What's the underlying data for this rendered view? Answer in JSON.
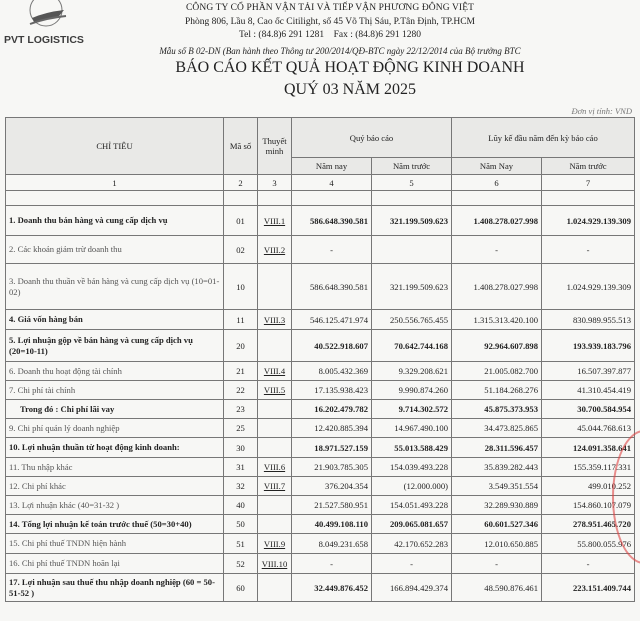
{
  "header": {
    "logo_text": "PVT LOGISTICS",
    "logo_badge": "PDV",
    "company": "CÔNG TY CỔ PHẦN VẬN TẢI VÀ TIẾP VẬN PHƯƠNG ĐÔNG VIỆT",
    "address": "Phòng 806, Lầu 8, Cao ốc Citilight, số 45 Võ Thị Sáu, P.Tân Định, TP.HCM",
    "tel": "Tel : (84.8)6 291 1281    Fax : (84.8)6 291 1280",
    "form": "Mẫu số B 02-DN (Ban hành theo Thông tư 200/2014/QĐ-BTC ngày 22/12/2014 của Bộ trưởng BTC",
    "title": "BÁO CÁO KẾT QUẢ HOẠT ĐỘNG KINH DOANH",
    "period": "QUÝ 03 NĂM 2025",
    "unit": "Đơn vị tính: VND"
  },
  "table": {
    "headers": {
      "indicator": "CHỈ TIÊU",
      "code": "Mã số",
      "note": "Thuyết minh",
      "quarter": "Quý báo cáo",
      "ytd": "Lũy kế đầu năm đến kỳ báo cáo",
      "q_this": "Năm nay",
      "q_prev": "Năm trước",
      "y_this": "Năm Nay",
      "y_prev": "Năm trước"
    },
    "col_numbers": [
      "1",
      "2",
      "3",
      "4",
      "5",
      "6",
      "7"
    ],
    "rows": [
      {
        "label": "1.  Doanh thu bán hàng và cung cấp dịch vụ",
        "code": "01",
        "note": "VIII.1",
        "v": [
          "586.648.390.581",
          "321.199.509.623",
          "1.408.278.027.998",
          "1.024.929.139.309"
        ]
      },
      {
        "label": "2.  Các khoản giảm trừ doanh thu",
        "code": "02",
        "note": "VIII.2",
        "v": [
          "-",
          "",
          "-",
          "-"
        ]
      },
      {
        "label": "3.  Doanh thu thuần về bán hàng và cung cấp dịch vụ (10=01-02)",
        "code": "10",
        "note": "",
        "v": [
          "586.648.390.581",
          "321.199.509.623",
          "1.408.278.027.998",
          "1.024.929.139.309"
        ]
      },
      {
        "label": "4.  Giá vốn hàng bán",
        "code": "11",
        "note": "VIII.3",
        "v": [
          "546.125.471.974",
          "250.556.765.455",
          "1.315.313.420.100",
          "830.989.955.513"
        ]
      },
      {
        "label": "5.  Lợi nhuận gộp về bán hàng và cung cấp dịch vụ (20=10-11)",
        "code": "20",
        "note": "",
        "v": [
          "40.522.918.607",
          "70.642.744.168",
          "92.964.607.898",
          "193.939.183.796"
        ]
      },
      {
        "label": "6.  Doanh thu hoạt động tài chính",
        "code": "21",
        "note": "VIII.4",
        "v": [
          "8.005.432.369",
          "9.329.208.621",
          "21.005.082.700",
          "16.507.397.877"
        ]
      },
      {
        "label": "7.  Chi phí tài chính",
        "code": "22",
        "note": "VIII.5",
        "v": [
          "17.135.938.423",
          "9.990.874.260",
          "51.184.268.276",
          "41.310.454.419"
        ]
      },
      {
        "label": "Trong đó : Chi phí lãi vay",
        "code": "23",
        "note": "",
        "v": [
          "16.202.479.782",
          "9.714.302.572",
          "45.875.373.953",
          "30.700.584.954"
        ]
      },
      {
        "label": "9.  Chi phí quản lý doanh nghiệp",
        "code": "25",
        "note": "",
        "v": [
          "12.420.885.394",
          "14.967.490.100",
          "34.473.825.865",
          "45.044.768.613"
        ]
      },
      {
        "label": "10. Lợi nhuận thuần từ hoạt động kinh doanh:",
        "code": "30",
        "note": "",
        "v": [
          "18.971.527.159",
          "55.013.588.429",
          "28.311.596.457",
          "124.091.358.641"
        ]
      },
      {
        "label": "11. Thu nhập  khác",
        "code": "31",
        "note": "VIII.6",
        "v": [
          "21.903.785.305",
          "154.039.493.228",
          "35.839.282.443",
          "155.359.117.331"
        ]
      },
      {
        "label": "12. Chi phí khác",
        "code": "32",
        "note": "VIII.7",
        "v": [
          "376.204.354",
          "(12.000.000)",
          "3.549.351.554",
          "499.010.252"
        ]
      },
      {
        "label": "13. Lợi nhuận khác (40=31-32 )",
        "code": "40",
        "note": "",
        "v": [
          "21.527.580.951",
          "154.051.493.228",
          "32.289.930.889",
          "154.860.107.079"
        ]
      },
      {
        "label": "14. Tổng lợi nhuận kế toán trước thuế (50=30+40)",
        "code": "50",
        "note": "",
        "v": [
          "40.499.108.110",
          "209.065.081.657",
          "60.601.527.346",
          "278.951.465.720"
        ]
      },
      {
        "label": "15. Chi phí thuế TNDN hiện hành",
        "code": "51",
        "note": "VIII.9",
        "v": [
          "8.049.231.658",
          "42.170.652.283",
          "12.010.650.885",
          "55.800.055.976"
        ]
      },
      {
        "label": "16. Chi phí thuế TNDN hoãn lại",
        "code": "52",
        "note": "VIII.10",
        "v": [
          "-",
          "-",
          "-",
          "-"
        ]
      },
      {
        "label": "17. Lợi nhuận sau thuế thu nhập doanh nghiệp (60 = 50-51-52 )",
        "code": "60",
        "note": "",
        "v": [
          "32.449.876.452",
          "166.894.429.374",
          "48.590.876.461",
          "223.151.409.744"
        ]
      }
    ]
  }
}
